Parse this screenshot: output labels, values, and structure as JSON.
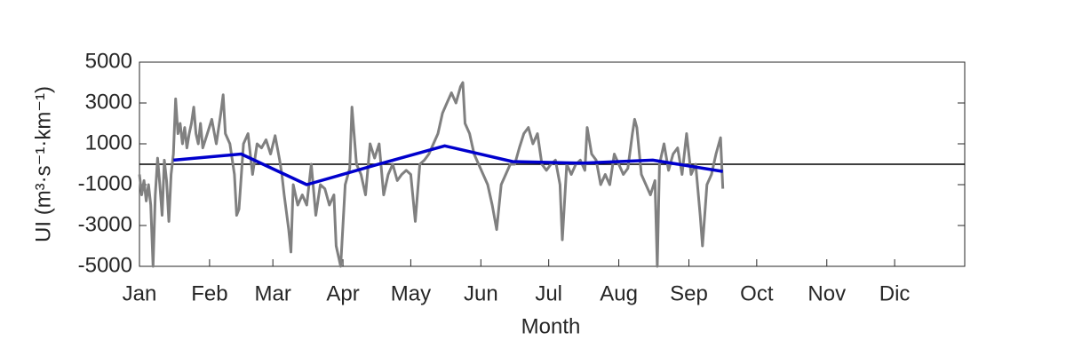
{
  "chart_data": {
    "type": "line",
    "xlabel": "Month",
    "ylabel": "UI (m³·s⁻¹·km⁻¹)",
    "xlim": [
      0,
      365
    ],
    "xticks": [
      {
        "value": 0,
        "label": "Jan"
      },
      {
        "value": 31,
        "label": "Feb"
      },
      {
        "value": 59,
        "label": "Mar"
      },
      {
        "value": 90,
        "label": "Apr"
      },
      {
        "value": 120,
        "label": "May"
      },
      {
        "value": 151,
        "label": "Jun"
      },
      {
        "value": 181,
        "label": "Jul"
      },
      {
        "value": 212,
        "label": "Aug"
      },
      {
        "value": 243,
        "label": "Sep"
      },
      {
        "value": 273,
        "label": "Oct"
      },
      {
        "value": 304,
        "label": "Nov"
      },
      {
        "value": 334,
        "label": "Dic"
      }
    ],
    "ylim": [
      -5000,
      5000
    ],
    "yticks": [
      -5000,
      -3000,
      -1000,
      1000,
      3000,
      5000
    ],
    "series": [
      {
        "color": "#808080",
        "x": [
          0,
          1,
          2,
          3,
          4,
          5,
          6,
          7,
          8,
          9,
          10,
          11,
          12,
          13,
          14,
          15,
          16,
          17,
          18,
          19,
          20,
          21,
          22,
          23,
          24,
          25,
          26,
          27,
          28,
          30,
          32,
          34,
          36,
          37,
          38,
          40,
          42,
          43,
          44,
          46,
          48,
          50,
          52,
          54,
          56,
          58,
          60,
          62,
          63,
          64,
          66,
          67,
          68,
          70,
          72,
          74,
          76,
          78,
          80,
          82,
          84,
          86,
          87,
          89,
          91,
          93,
          94,
          96,
          98,
          100,
          102,
          104,
          106,
          108,
          110,
          112,
          114,
          116,
          118,
          120,
          122,
          124,
          126,
          128,
          130,
          132,
          134,
          136,
          138,
          140,
          142,
          143,
          144,
          146,
          148,
          150,
          152,
          154,
          156,
          158,
          160,
          162,
          164,
          166,
          168,
          170,
          172,
          174,
          176,
          178,
          180,
          182,
          184,
          186,
          187,
          189,
          191,
          193,
          195,
          197,
          198,
          200,
          202,
          204,
          206,
          208,
          210,
          212,
          214,
          216,
          218,
          219,
          220,
          222,
          224,
          226,
          228,
          229,
          230,
          232,
          234,
          236,
          238,
          240,
          242,
          244,
          246,
          248,
          249,
          251,
          253,
          255,
          257,
          258
        ],
        "values": [
          -500,
          -1500,
          -800,
          -1800,
          -1000,
          -2000,
          -5000,
          -1500,
          300,
          -1000,
          -2500,
          200,
          -800,
          -2800,
          -500,
          500,
          3200,
          1500,
          2000,
          1000,
          1800,
          800,
          1500,
          2000,
          2800,
          1500,
          1000,
          2000,
          800,
          1500,
          2200,
          1000,
          2500,
          3400,
          1500,
          1000,
          -500,
          -2500,
          -2200,
          1000,
          1500,
          -500,
          1000,
          800,
          1200,
          500,
          1400,
          200,
          -500,
          -1500,
          -3200,
          -4300,
          -1000,
          -2000,
          -1500,
          -2000,
          0,
          -2500,
          -1000,
          -1200,
          -2000,
          -1500,
          -4000,
          -5000,
          -1000,
          -200,
          2800,
          0,
          -500,
          -1500,
          1000,
          300,
          1000,
          -1500,
          -500,
          0,
          -800,
          -500,
          -300,
          -500,
          -2800,
          0,
          200,
          500,
          1000,
          1500,
          2500,
          3000,
          3500,
          3000,
          3800,
          4000,
          2000,
          1500,
          500,
          0,
          -500,
          -1000,
          -2000,
          -3200,
          -1000,
          -500,
          0,
          0,
          800,
          1500,
          1800,
          1000,
          1500,
          0,
          -300,
          0,
          200,
          -1000,
          -3700,
          0,
          -500,
          0,
          200,
          -300,
          1800,
          500,
          200,
          -1000,
          -500,
          -1000,
          500,
          0,
          -500,
          -200,
          1500,
          2200,
          1800,
          -500,
          -1000,
          -1500,
          -800,
          -5000,
          0,
          1000,
          -300,
          500,
          800,
          -500,
          1500,
          -500,
          0,
          -2500,
          -4000,
          -1000,
          -500,
          500,
          1300,
          -1200
        ]
      },
      {
        "color": "#0000cd",
        "x": [
          15,
          45,
          74,
          104,
          135,
          165,
          196,
          227,
          258
        ],
        "values": [
          200,
          500,
          -1000,
          -50,
          900,
          130,
          50,
          200,
          -350
        ]
      }
    ]
  }
}
